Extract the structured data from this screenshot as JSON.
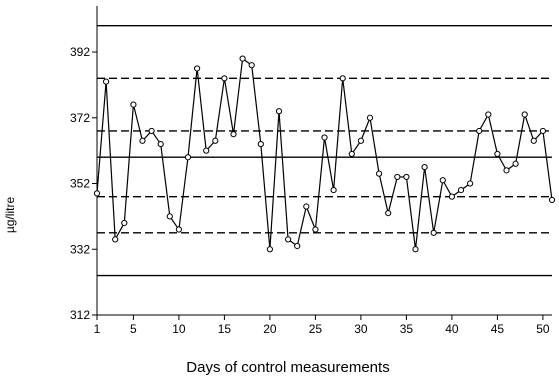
{
  "chart_data": {
    "type": "line",
    "title": "",
    "xlabel": "Days of control measurements",
    "ylabel": "µg/litre",
    "xlim": [
      1,
      51
    ],
    "ylim": [
      312,
      406
    ],
    "x_ticks": [
      1,
      5,
      10,
      15,
      20,
      25,
      30,
      35,
      40,
      45,
      50
    ],
    "y_ticks": [
      312,
      332,
      352,
      372,
      392
    ],
    "grid": false,
    "legend": "none",
    "reference_lines": [
      {
        "value": 400,
        "style": "solid"
      },
      {
        "value": 384,
        "style": "dashed"
      },
      {
        "value": 368,
        "style": "dashed"
      },
      {
        "value": 360,
        "style": "solid"
      },
      {
        "value": 348,
        "style": "dashed"
      },
      {
        "value": 337,
        "style": "dashed"
      },
      {
        "value": 324,
        "style": "solid"
      }
    ],
    "series": [
      {
        "x": [
          1,
          2,
          3,
          4,
          5,
          6,
          7,
          8,
          9,
          10,
          11,
          12,
          13,
          14,
          15,
          16,
          17,
          18,
          19,
          20,
          21,
          22,
          23,
          24,
          25,
          26,
          27,
          28,
          29,
          30,
          31,
          32,
          33,
          34,
          35,
          36,
          37,
          38,
          39,
          40,
          41,
          42,
          43,
          44,
          45,
          46,
          47,
          48,
          49,
          50,
          51
        ],
        "y": [
          349,
          383,
          335,
          340,
          376,
          365,
          368,
          364,
          342,
          338,
          360,
          387,
          362,
          365,
          384,
          367,
          390,
          388,
          364,
          332,
          374,
          335,
          333,
          345,
          338,
          366,
          350,
          384,
          361,
          365,
          372,
          355,
          343,
          354,
          354,
          332,
          357,
          337,
          353,
          348,
          350,
          352,
          368,
          373,
          361,
          356,
          358,
          373,
          365,
          368,
          347
        ]
      }
    ],
    "colors": {
      "line": "#000000",
      "marker_fill": "#ffffff",
      "marker_stroke": "#000000",
      "axis": "#000000",
      "background": "#ffffff"
    }
  }
}
